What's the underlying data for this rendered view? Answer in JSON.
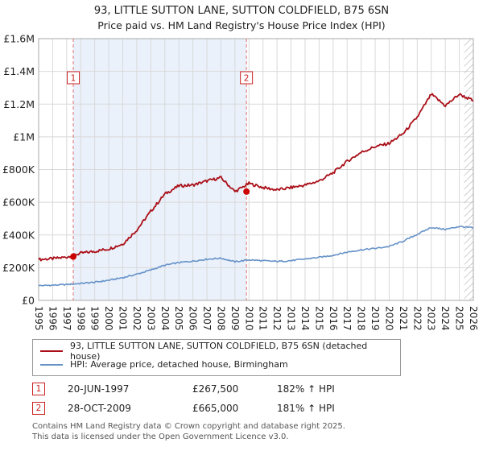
{
  "header": {
    "title": "93, LITTLE SUTTON LANE, SUTTON COLDFIELD, B75 6SN",
    "subtitle": "Price paid vs. HM Land Registry's House Price Index (HPI)"
  },
  "chart_data": {
    "type": "line",
    "x_years": [
      1995,
      1996,
      1997,
      1998,
      1999,
      2000,
      2001,
      2002,
      2003,
      2004,
      2005,
      2006,
      2007,
      2008,
      2009,
      2010,
      2011,
      2012,
      2013,
      2014,
      2015,
      2016,
      2017,
      2018,
      2019,
      2020,
      2021,
      2022,
      2023,
      2024,
      2025,
      2026
    ],
    "ylim": [
      0,
      1600000
    ],
    "ytick_step": 200000,
    "ytick_labels": [
      "£0",
      "£200K",
      "£400K",
      "£600K",
      "£800K",
      "£1M",
      "£1.2M",
      "£1.4M",
      "£1.6M"
    ],
    "grid": true,
    "legend_position": "bottom",
    "series": [
      {
        "name": "93, LITTLE SUTTON LANE, SUTTON COLDFIELD, B75 6SN (detached house)",
        "color": "#aa0f18",
        "values": [
          250000,
          255000,
          265000,
          288000,
          300000,
          315000,
          345000,
          430000,
          545000,
          650000,
          700000,
          705000,
          730000,
          750000,
          665000,
          715000,
          690000,
          675000,
          690000,
          705000,
          730000,
          780000,
          850000,
          905000,
          940000,
          960000,
          1020000,
          1120000,
          1260000,
          1190000,
          1260000,
          1220000
        ]
      },
      {
        "name": "HPI: Average price, detached house, Birmingham",
        "color": "#6692c8",
        "values": [
          90000,
          93000,
          97000,
          104000,
          111000,
          123000,
          139000,
          160000,
          186000,
          215000,
          231000,
          240000,
          252000,
          258000,
          236000,
          248000,
          242000,
          238000,
          243000,
          253000,
          263000,
          276000,
          295000,
          309000,
          318000,
          330000,
          362000,
          404000,
          446000,
          434000,
          452000,
          443000
        ]
      }
    ],
    "sale_markers": [
      {
        "label": "1",
        "x": 1997.47,
        "value": 267500
      },
      {
        "label": "2",
        "x": 2009.82,
        "value": 665000
      }
    ],
    "shaded_span": [
      1997.47,
      2009.82
    ],
    "hatched_span": [
      2025.35,
      2026
    ],
    "colors": {
      "shade": "#eaf1fb",
      "grid": "#d9d9d9",
      "sale_line": "#e07070",
      "marker": "#cc2222",
      "dot": "#cc0000",
      "border": "#aaaaaa"
    }
  },
  "table": {
    "rows": [
      {
        "num": "1",
        "date": "20-JUN-1997",
        "price": "£267,500",
        "hpi": "182% ↑ HPI"
      },
      {
        "num": "2",
        "date": "28-OCT-2009",
        "price": "£665,000",
        "hpi": "181% ↑ HPI"
      }
    ]
  },
  "footer": {
    "line1": "Contains HM Land Registry data © Crown copyright and database right 2025.",
    "line2": "This data is licensed under the Open Government Licence v3.0."
  }
}
